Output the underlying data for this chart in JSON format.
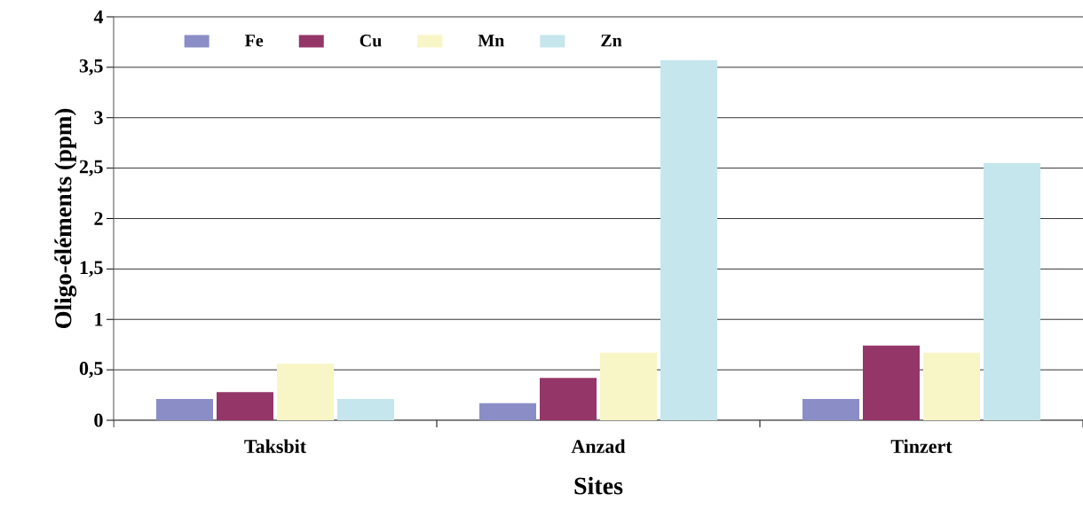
{
  "chart_data": {
    "type": "bar",
    "xlabel": "Sites",
    "ylabel": "Oligo-éléments (ppm)",
    "categories": [
      "Taksbit",
      "Anzad",
      "Tinzert"
    ],
    "series": [
      {
        "name": "Fe",
        "color": "#8a8dc6",
        "values": [
          0.21,
          0.17,
          0.21
        ]
      },
      {
        "name": "Cu",
        "color": "#943668",
        "values": [
          0.28,
          0.42,
          0.74
        ]
      },
      {
        "name": "Mn",
        "color": "#f8f6c6",
        "values": [
          0.56,
          0.67,
          0.67
        ]
      },
      {
        "name": "Zn",
        "color": "#c4e6ec",
        "values": [
          0.21,
          3.57,
          2.55
        ]
      }
    ],
    "ylim": [
      0,
      4
    ],
    "yticks": [
      0,
      {
        "value": 0.5,
        "label": "0,5"
      },
      1,
      {
        "value": 1.5,
        "label": "1,5"
      },
      2,
      {
        "value": 2.5,
        "label": "2,5"
      },
      3,
      {
        "value": 3.5,
        "label": "3,5"
      },
      4
    ],
    "grid": "y",
    "legend": "top left"
  }
}
